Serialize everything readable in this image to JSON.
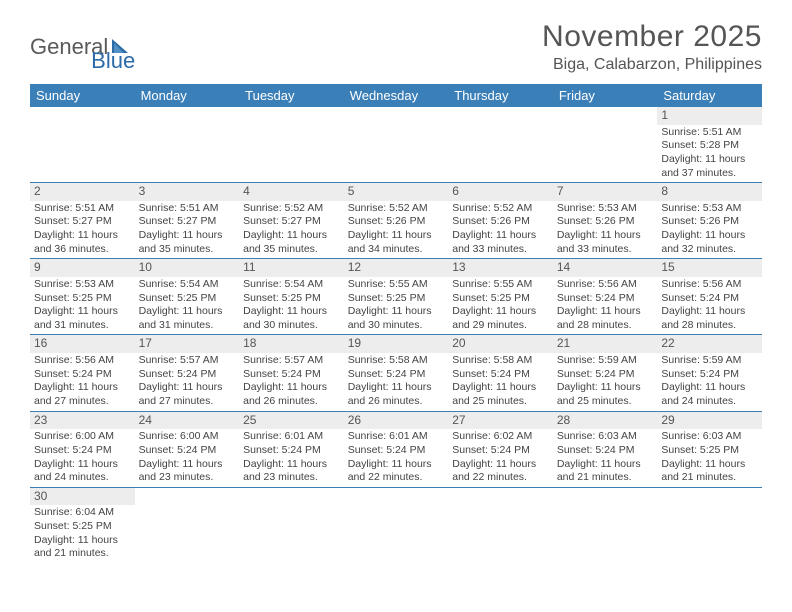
{
  "brand": {
    "part1": "General",
    "part2": "Blue"
  },
  "title": "November 2025",
  "location": "Biga, Calabarzon, Philippines",
  "colors": {
    "header_bg": "#3b7fb8",
    "header_fg": "#ffffff",
    "border": "#3b7fb8",
    "daynum_bg": "#ededed",
    "text": "#444444",
    "title": "#555555"
  },
  "dayNames": [
    "Sunday",
    "Monday",
    "Tuesday",
    "Wednesday",
    "Thursday",
    "Friday",
    "Saturday"
  ],
  "firstDayIndex": 6,
  "daysInMonth": 30,
  "days": {
    "1": {
      "sunrise": "5:51 AM",
      "sunset": "5:28 PM",
      "daylight": "11 hours and 37 minutes."
    },
    "2": {
      "sunrise": "5:51 AM",
      "sunset": "5:27 PM",
      "daylight": "11 hours and 36 minutes."
    },
    "3": {
      "sunrise": "5:51 AM",
      "sunset": "5:27 PM",
      "daylight": "11 hours and 35 minutes."
    },
    "4": {
      "sunrise": "5:52 AM",
      "sunset": "5:27 PM",
      "daylight": "11 hours and 35 minutes."
    },
    "5": {
      "sunrise": "5:52 AM",
      "sunset": "5:26 PM",
      "daylight": "11 hours and 34 minutes."
    },
    "6": {
      "sunrise": "5:52 AM",
      "sunset": "5:26 PM",
      "daylight": "11 hours and 33 minutes."
    },
    "7": {
      "sunrise": "5:53 AM",
      "sunset": "5:26 PM",
      "daylight": "11 hours and 33 minutes."
    },
    "8": {
      "sunrise": "5:53 AM",
      "sunset": "5:26 PM",
      "daylight": "11 hours and 32 minutes."
    },
    "9": {
      "sunrise": "5:53 AM",
      "sunset": "5:25 PM",
      "daylight": "11 hours and 31 minutes."
    },
    "10": {
      "sunrise": "5:54 AM",
      "sunset": "5:25 PM",
      "daylight": "11 hours and 31 minutes."
    },
    "11": {
      "sunrise": "5:54 AM",
      "sunset": "5:25 PM",
      "daylight": "11 hours and 30 minutes."
    },
    "12": {
      "sunrise": "5:55 AM",
      "sunset": "5:25 PM",
      "daylight": "11 hours and 30 minutes."
    },
    "13": {
      "sunrise": "5:55 AM",
      "sunset": "5:25 PM",
      "daylight": "11 hours and 29 minutes."
    },
    "14": {
      "sunrise": "5:56 AM",
      "sunset": "5:24 PM",
      "daylight": "11 hours and 28 minutes."
    },
    "15": {
      "sunrise": "5:56 AM",
      "sunset": "5:24 PM",
      "daylight": "11 hours and 28 minutes."
    },
    "16": {
      "sunrise": "5:56 AM",
      "sunset": "5:24 PM",
      "daylight": "11 hours and 27 minutes."
    },
    "17": {
      "sunrise": "5:57 AM",
      "sunset": "5:24 PM",
      "daylight": "11 hours and 27 minutes."
    },
    "18": {
      "sunrise": "5:57 AM",
      "sunset": "5:24 PM",
      "daylight": "11 hours and 26 minutes."
    },
    "19": {
      "sunrise": "5:58 AM",
      "sunset": "5:24 PM",
      "daylight": "11 hours and 26 minutes."
    },
    "20": {
      "sunrise": "5:58 AM",
      "sunset": "5:24 PM",
      "daylight": "11 hours and 25 minutes."
    },
    "21": {
      "sunrise": "5:59 AM",
      "sunset": "5:24 PM",
      "daylight": "11 hours and 25 minutes."
    },
    "22": {
      "sunrise": "5:59 AM",
      "sunset": "5:24 PM",
      "daylight": "11 hours and 24 minutes."
    },
    "23": {
      "sunrise": "6:00 AM",
      "sunset": "5:24 PM",
      "daylight": "11 hours and 24 minutes."
    },
    "24": {
      "sunrise": "6:00 AM",
      "sunset": "5:24 PM",
      "daylight": "11 hours and 23 minutes."
    },
    "25": {
      "sunrise": "6:01 AM",
      "sunset": "5:24 PM",
      "daylight": "11 hours and 23 minutes."
    },
    "26": {
      "sunrise": "6:01 AM",
      "sunset": "5:24 PM",
      "daylight": "11 hours and 22 minutes."
    },
    "27": {
      "sunrise": "6:02 AM",
      "sunset": "5:24 PM",
      "daylight": "11 hours and 22 minutes."
    },
    "28": {
      "sunrise": "6:03 AM",
      "sunset": "5:24 PM",
      "daylight": "11 hours and 21 minutes."
    },
    "29": {
      "sunrise": "6:03 AM",
      "sunset": "5:25 PM",
      "daylight": "11 hours and 21 minutes."
    },
    "30": {
      "sunrise": "6:04 AM",
      "sunset": "5:25 PM",
      "daylight": "11 hours and 21 minutes."
    }
  },
  "labels": {
    "sunrise": "Sunrise:",
    "sunset": "Sunset:",
    "daylight": "Daylight:"
  }
}
